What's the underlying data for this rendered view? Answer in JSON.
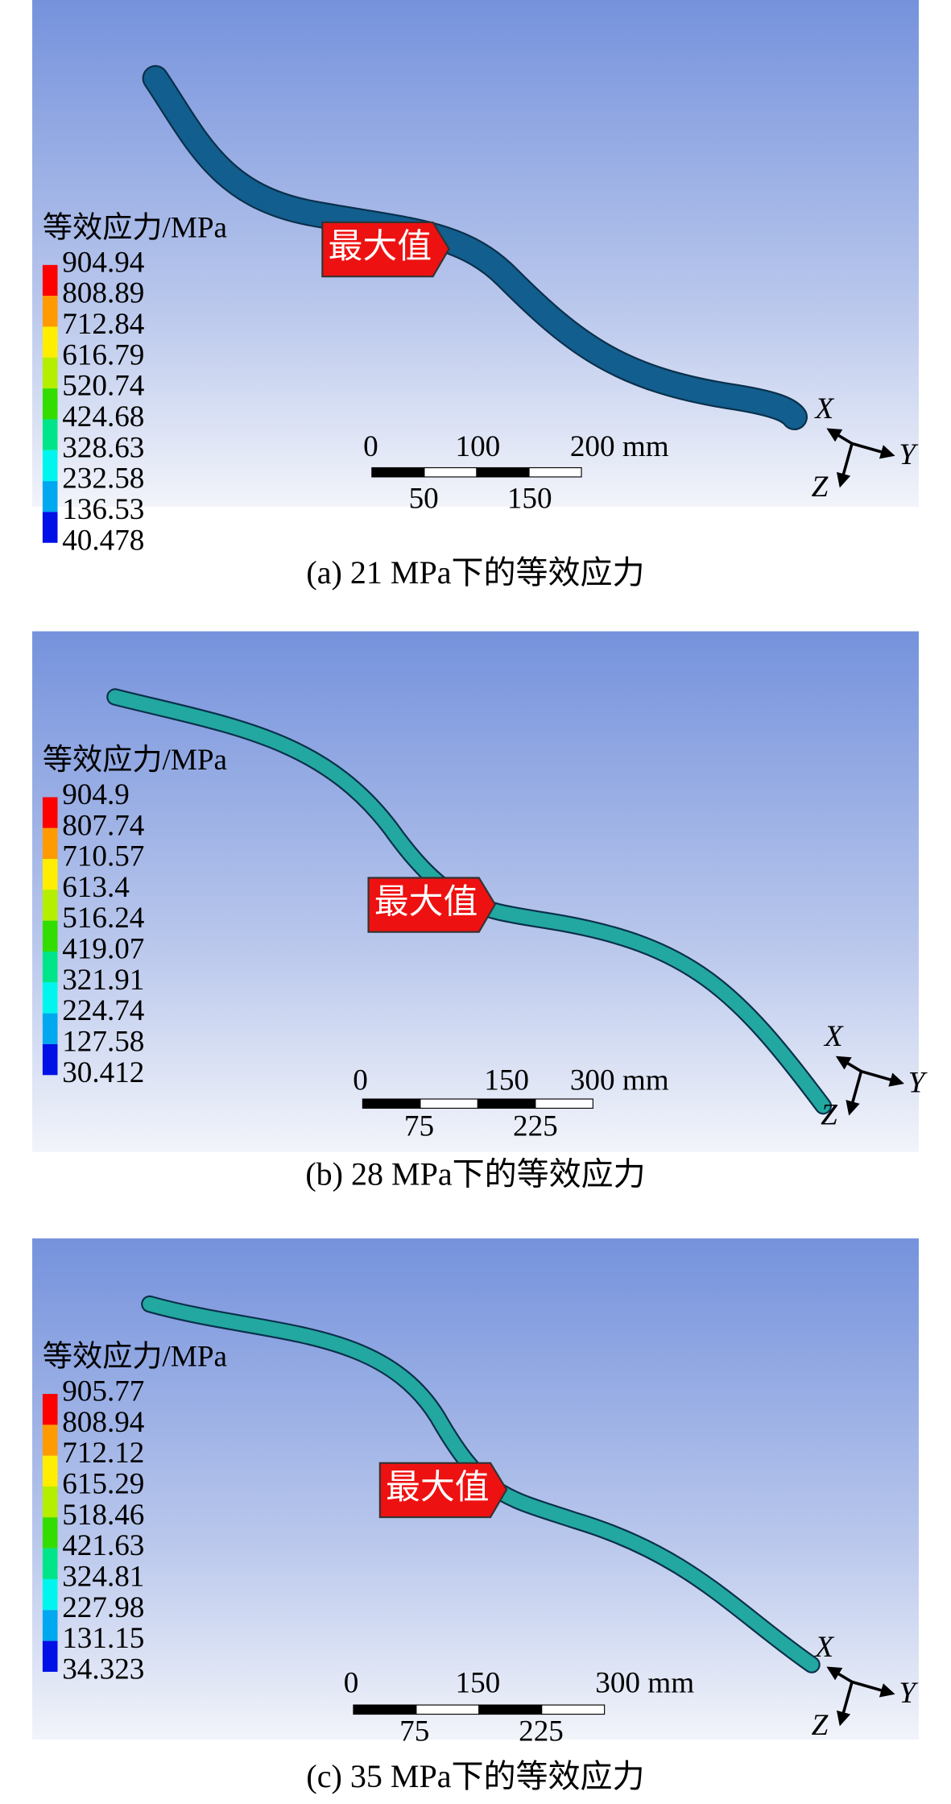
{
  "panels": [
    {
      "legend_title": "等效应力/MPa",
      "legend_values": [
        "904.94",
        "808.89",
        "712.84",
        "616.79",
        "520.74",
        "424.68",
        "328.63",
        "232.58",
        "136.53",
        "40.478"
      ],
      "callout": "最大值",
      "scale_top": [
        "0",
        "100",
        "200 mm"
      ],
      "scale_bottom": [
        "50",
        "150"
      ],
      "axes": [
        "X",
        "Y",
        "Z"
      ],
      "caption": "(a) 21 MPa下的等效应力"
    },
    {
      "legend_title": "等效应力/MPa",
      "legend_values": [
        "904.9",
        "807.74",
        "710.57",
        "613.4",
        "516.24",
        "419.07",
        "321.91",
        "224.74",
        "127.58",
        "30.412"
      ],
      "callout": "最大值",
      "scale_top": [
        "0",
        "150",
        "300 mm"
      ],
      "scale_bottom": [
        "75",
        "225"
      ],
      "axes": [
        "X",
        "Y",
        "Z"
      ],
      "caption": "(b) 28 MPa下的等效应力"
    },
    {
      "legend_title": "等效应力/MPa",
      "legend_values": [
        "905.77",
        "808.94",
        "712.12",
        "615.29",
        "518.46",
        "421.63",
        "324.81",
        "227.98",
        "131.15",
        "34.323"
      ],
      "callout": "最大值",
      "scale_top": [
        "0",
        "150",
        "300 mm"
      ],
      "scale_bottom": [
        "75",
        "225"
      ],
      "axes": [
        "X",
        "Y",
        "Z"
      ],
      "caption": "(c) 35 MPa下的等效应力"
    }
  ]
}
